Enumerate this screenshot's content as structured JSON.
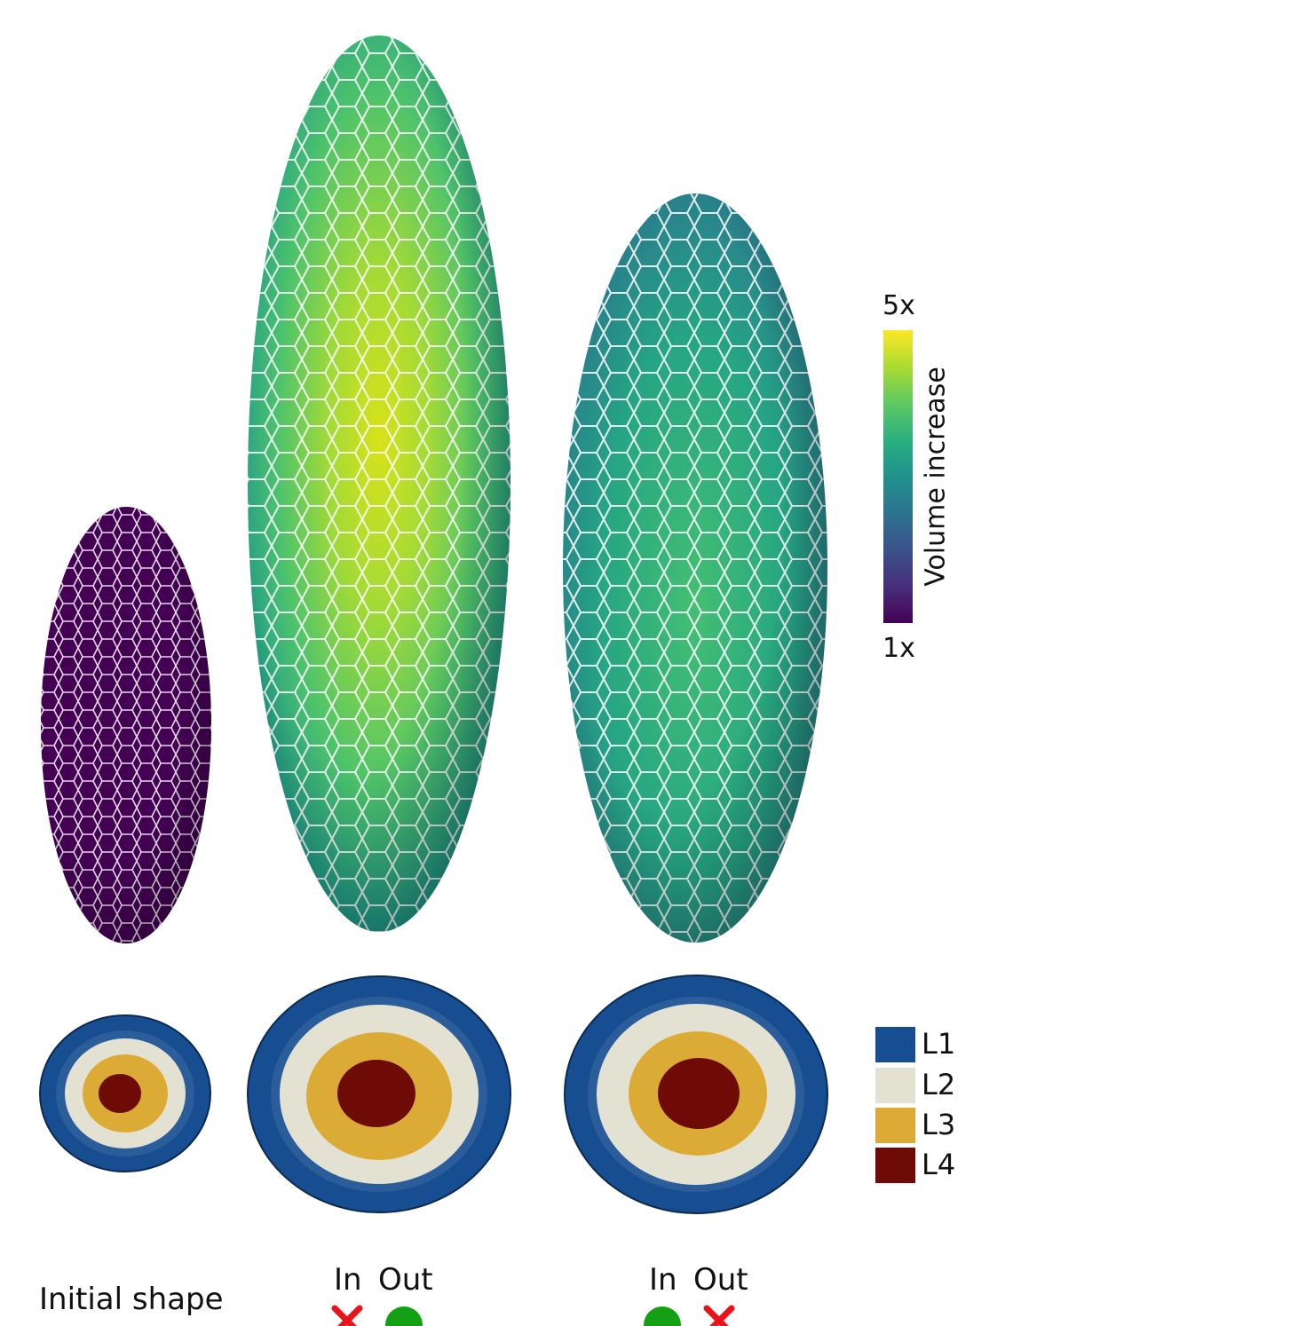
{
  "colorbar": {
    "title": "Volume increase",
    "max_label": "5x",
    "min_label": "1x",
    "colormap": [
      "#440154",
      "#3b528b",
      "#21918c",
      "#5ec962",
      "#fde725"
    ]
  },
  "legend": {
    "items": [
      {
        "label": "L1",
        "color": "#164e91"
      },
      {
        "label": "L2",
        "color": "#e3e2d2"
      },
      {
        "label": "L3",
        "color": "#dcab35"
      },
      {
        "label": "L4",
        "color": "#6e0b07"
      }
    ]
  },
  "panels": [
    {
      "label": "Initial shape",
      "fill": "#440154"
    },
    {
      "in_label": "In",
      "out_label": "Out",
      "in_mark": "red-cross",
      "out_mark": "green-dot"
    },
    {
      "in_label": "In",
      "out_label": "Out",
      "in_mark": "green-dot",
      "out_mark": "red-cross"
    }
  ],
  "marker_colors": {
    "cross": "#e8141b",
    "dot": "#13a013"
  }
}
